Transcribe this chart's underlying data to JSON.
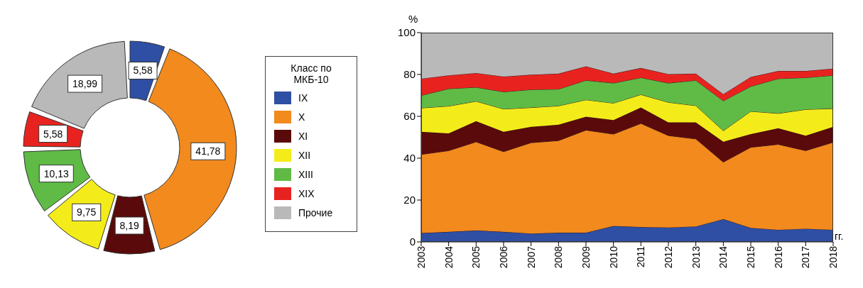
{
  "chart_data": [
    {
      "type": "donut",
      "legend_title": "Класс по МКБ-10",
      "legend": "right",
      "categories": [
        "IX",
        "X",
        "XI",
        "XII",
        "XIII",
        "XIX",
        "Прочие"
      ],
      "values": [
        5.58,
        41.78,
        8.19,
        9.75,
        10.13,
        5.58,
        18.99
      ],
      "colors": [
        "#2e4fa3",
        "#f28a1e",
        "#5a0a0a",
        "#f4ec1a",
        "#5fbb46",
        "#e8231f",
        "#b9b9b9"
      ],
      "value_labels": [
        "5,58",
        "41,78",
        "8,19",
        "9,75",
        "10,13",
        "5,58",
        "18,99"
      ]
    },
    {
      "type": "area",
      "stacked": true,
      "ylabel": "%",
      "xlabel": "гг.",
      "categories": [
        "2003",
        "2004",
        "2005",
        "2006",
        "2007",
        "2008",
        "2009",
        "2010",
        "2011",
        "2012",
        "2013",
        "2014",
        "2015",
        "2016",
        "2017",
        "2018"
      ],
      "ylim": [
        0,
        100
      ],
      "yticks": [
        0,
        20,
        40,
        60,
        80,
        100
      ],
      "grid": false,
      "series": [
        {
          "color": "#2e4fa3",
          "values": [
            4.2,
            4.8,
            5.5,
            4.8,
            4.0,
            4.4,
            4.4,
            7.6,
            7.1,
            6.9,
            7.4,
            10.9,
            6.7,
            5.8,
            6.3,
            5.8
          ]
        },
        {
          "color": "#f28a1e",
          "values": [
            37.6,
            38.8,
            42.3,
            38.3,
            43.4,
            44.0,
            49.0,
            43.9,
            49.5,
            43.9,
            41.8,
            27.2,
            38.5,
            40.8,
            37.3,
            41.8
          ]
        },
        {
          "color": "#5a0a0a",
          "values": [
            10.8,
            8.3,
            9.9,
            9.5,
            7.6,
            7.6,
            6.4,
            6.7,
            7.6,
            6.3,
            7.9,
            9.8,
            6.3,
            7.7,
            7.2,
            7.4
          ]
        },
        {
          "color": "#f4ec1a",
          "values": [
            11.4,
            13.0,
            9.5,
            10.9,
            9.2,
            9.0,
            8.1,
            8.1,
            6.2,
            9.6,
            8.0,
            5.2,
            10.9,
            7.1,
            12.5,
            8.7
          ]
        },
        {
          "color": "#5fbb46",
          "values": [
            6.0,
            8.3,
            6.7,
            8.2,
            8.6,
            8.0,
            9.3,
            9.6,
            8.1,
            9.2,
            12.1,
            14.3,
            11.9,
            16.6,
            15.2,
            15.9
          ]
        },
        {
          "color": "#e8231f",
          "values": [
            8.0,
            6.4,
            6.8,
            7.3,
            7.1,
            7.4,
            6.7,
            4.5,
            4.6,
            4.3,
            3.2,
            3.2,
            4.5,
            3.7,
            3.2,
            3.2
          ]
        },
        {
          "color": "#b9b9b9",
          "values": [
            22.0,
            20.4,
            19.3,
            21.0,
            20.1,
            19.6,
            16.1,
            19.6,
            16.9,
            19.8,
            19.6,
            29.4,
            21.2,
            18.3,
            18.3,
            17.2
          ]
        }
      ]
    }
  ]
}
